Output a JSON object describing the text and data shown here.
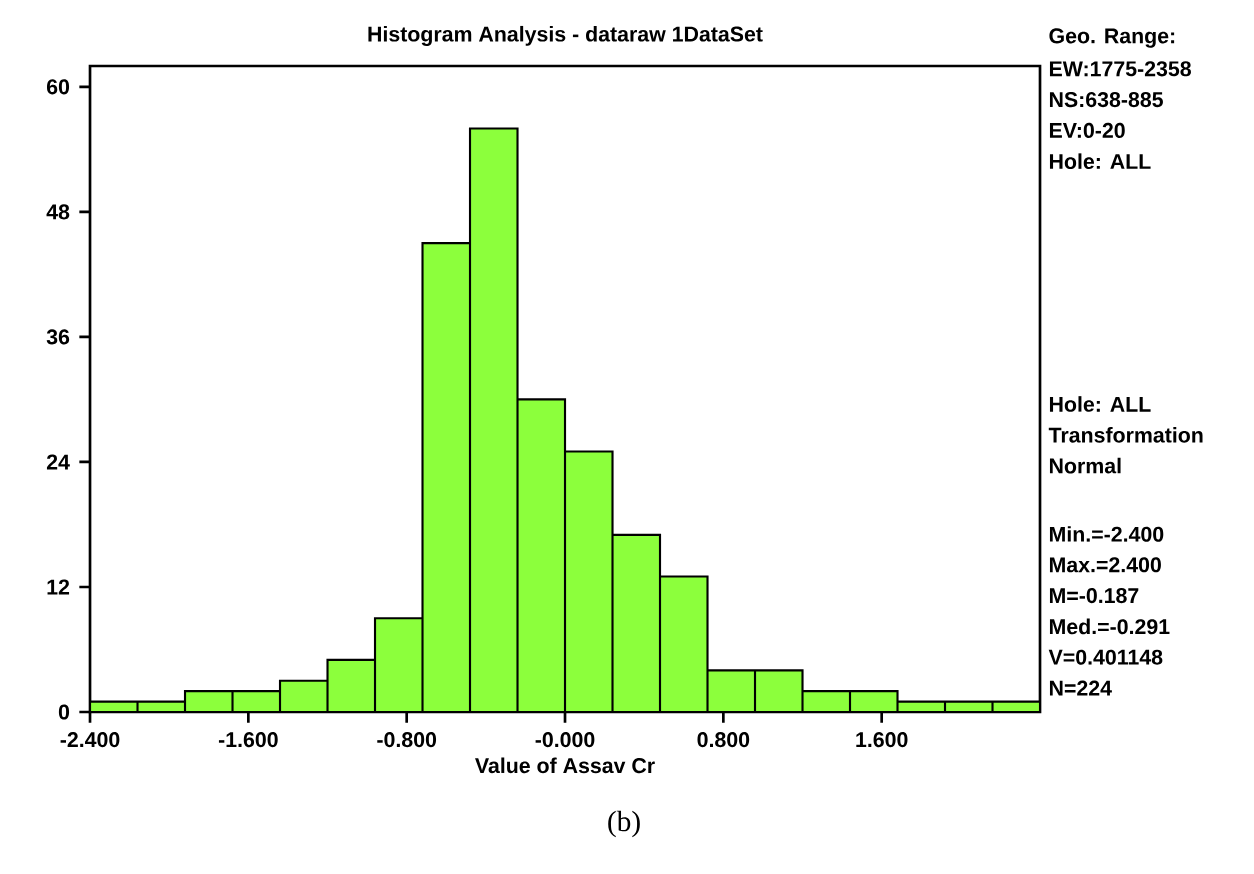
{
  "chart_data": {
    "type": "histogram",
    "title": "Histogram Analysis - dataraw 1DataSet",
    "xlabel": "Value of Assav Cr",
    "bins": [
      -2.4,
      -2.16,
      -1.92,
      -1.68,
      -1.44,
      -1.2,
      -0.96,
      -0.72,
      -0.48,
      -0.24,
      0,
      0.24,
      0.48,
      0.72,
      0.96,
      1.2,
      1.44,
      1.68,
      1.92,
      2.16,
      2.4
    ],
    "values": [
      1,
      1,
      2,
      2,
      3,
      5,
      9,
      45,
      56,
      30,
      25,
      17,
      13,
      4,
      4,
      2,
      2,
      1,
      1,
      1
    ],
    "color": "#8cff3c",
    "xlim": [
      -2.4,
      2.4
    ],
    "ylim": [
      0,
      62
    ],
    "xticks": [
      {
        "value": -2.4,
        "label": "-2.400"
      },
      {
        "value": -1.6,
        "label": "-1.600"
      },
      {
        "value": -0.8,
        "label": "-0.800"
      },
      {
        "value": 0,
        "label": "-0.000"
      },
      {
        "value": 0.8,
        "label": "0.800"
      },
      {
        "value": 1.6,
        "label": "1.600"
      }
    ],
    "yticks": [
      0,
      12,
      24,
      36,
      48,
      60
    ],
    "grid": false,
    "annotations": [
      "Geo. Range:",
      "EW:1775-2358",
      "NS:638-885",
      "EV:0-20",
      "Hole: ALL",
      "Hole: ALL",
      "Transformation",
      "Normal",
      "Min.=-2.400",
      "Max.=2.400",
      "M=-0.187",
      "Med.=-0.291",
      "V=0.401148",
      "N=224",
      "(b)"
    ]
  }
}
